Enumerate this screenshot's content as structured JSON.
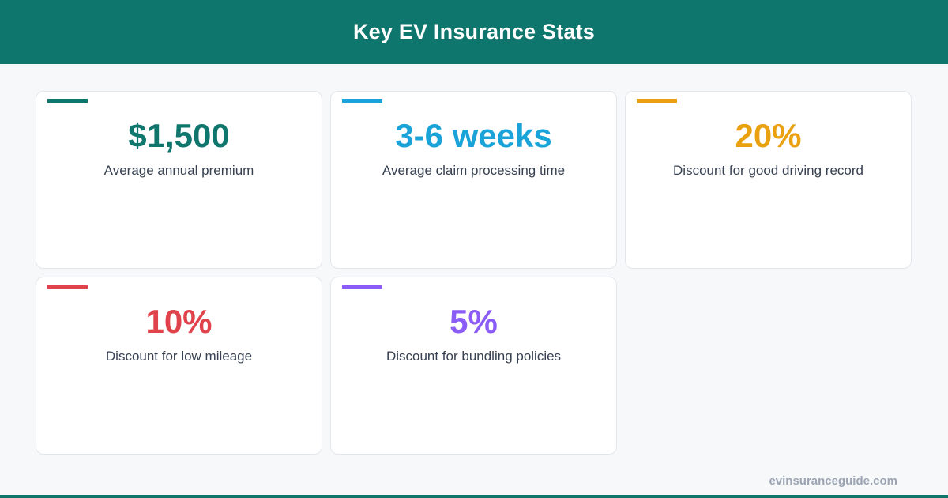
{
  "header": {
    "title": "Key EV Insurance Stats"
  },
  "stats": [
    {
      "value": "$1,500",
      "label": "Average annual premium",
      "color": "#0f766e"
    },
    {
      "value": "3-6 weeks",
      "label": "Average claim processing time",
      "color": "#1aa3d9"
    },
    {
      "value": "20%",
      "label": "Discount for good driving record",
      "color": "#eaa10f"
    },
    {
      "value": "10%",
      "label": "Discount for low mileage",
      "color": "#e0434b"
    },
    {
      "value": "5%",
      "label": "Discount for bundling policies",
      "color": "#8b5cf6"
    }
  ],
  "footer": {
    "url": "evinsuranceguide.com"
  },
  "colors": {
    "brand": "#0f766e",
    "background": "#f7f8fa"
  }
}
